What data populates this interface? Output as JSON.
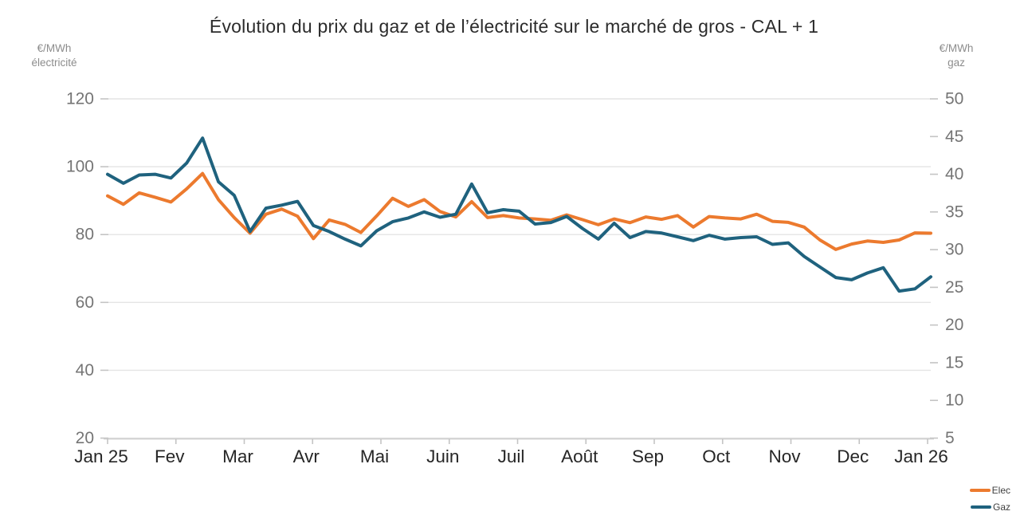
{
  "title": "Évolution du prix du gaz et de l’électricité sur le marché de gros - CAL + 1",
  "left_axis": {
    "unit_line1": "€/MWh",
    "unit_line2": "électricité",
    "ticks": [
      120,
      100,
      80,
      60,
      40,
      20
    ],
    "min": 20,
    "max": 120
  },
  "right_axis": {
    "unit_line1": "€/MWh",
    "unit_line2": "gaz",
    "ticks": [
      50,
      45,
      40,
      35,
      30,
      25,
      20,
      15,
      10,
      5
    ],
    "min": 5,
    "max": 50
  },
  "x_axis": {
    "labels": [
      "Jan 25",
      "Fev",
      "Mar",
      "Avr",
      "Mai",
      "Juin",
      "Juil",
      "Août",
      "Sep",
      "Oct",
      "Nov",
      "Dec",
      "Jan 26"
    ]
  },
  "legend": [
    {
      "label": "Elec",
      "color": "#EC7A2E"
    },
    {
      "label": "Gaz",
      "color": "#1F627E"
    }
  ],
  "colors": {
    "elec": "#EC7A2E",
    "gaz": "#1F627E",
    "gridline": "#e4e4e4",
    "tick": "#c4c4c4",
    "axis_line": "#cdcdcd",
    "y_label": "#757575",
    "x_label": "#262626"
  },
  "chart_data": {
    "type": "line",
    "title": "Évolution du prix du gaz et de l’électricité sur le marché de gros - CAL + 1",
    "x_label_ticks": [
      "Jan 25",
      "Fev",
      "Mar",
      "Avr",
      "Mai",
      "Juin",
      "Juil",
      "Août",
      "Sep",
      "Oct",
      "Nov",
      "Dec",
      "Jan 26"
    ],
    "x_weekly_dates": [
      "2025-01-01",
      "2025-01-08",
      "2025-01-15",
      "2025-01-22",
      "2025-01-29",
      "2025-02-05",
      "2025-02-12",
      "2025-02-19",
      "2025-02-26",
      "2025-03-05",
      "2025-03-12",
      "2025-03-19",
      "2025-03-26",
      "2025-04-02",
      "2025-04-09",
      "2025-04-16",
      "2025-04-23",
      "2025-04-30",
      "2025-05-07",
      "2025-05-14",
      "2025-05-21",
      "2025-05-28",
      "2025-06-04",
      "2025-06-11",
      "2025-06-18",
      "2025-06-25",
      "2025-07-02",
      "2025-07-09",
      "2025-07-16",
      "2025-07-23",
      "2025-07-30",
      "2025-08-06",
      "2025-08-13",
      "2025-08-20",
      "2025-08-27",
      "2025-09-03",
      "2025-09-10",
      "2025-09-17",
      "2025-09-24",
      "2025-10-01",
      "2025-10-08",
      "2025-10-15",
      "2025-10-22",
      "2025-10-29",
      "2025-11-05",
      "2025-11-12",
      "2025-11-19",
      "2025-11-26",
      "2025-12-03",
      "2025-12-10",
      "2025-12-17",
      "2025-12-24",
      "2025-12-31"
    ],
    "series": [
      {
        "name": "Elec",
        "axis": "left",
        "unit": "€/MWh électricité",
        "color": "#EC7A2E",
        "values": [
          91.4,
          88.9,
          92.3,
          91.0,
          89.6,
          93.5,
          98.0,
          90.3,
          85.0,
          80.4,
          86.0,
          87.5,
          85.4,
          78.8,
          84.3,
          83.0,
          80.6,
          85.5,
          90.7,
          88.3,
          90.3,
          86.8,
          85.2,
          89.7,
          85.0,
          85.6,
          84.9,
          84.6,
          84.2,
          85.8,
          84.4,
          82.9,
          84.6,
          83.5,
          85.2,
          84.5,
          85.6,
          82.2,
          85.3,
          84.9,
          84.6,
          86.0,
          83.9,
          83.6,
          82.2,
          78.4,
          75.6,
          77.2,
          78.1,
          77.7,
          78.4,
          80.5,
          80.4
        ]
      },
      {
        "name": "Gaz",
        "axis": "right",
        "unit": "€/MWh gaz",
        "color": "#1F627E",
        "values": [
          40.0,
          38.8,
          39.9,
          40.0,
          39.5,
          41.5,
          44.8,
          39.0,
          37.2,
          32.4,
          35.5,
          35.9,
          36.4,
          33.2,
          32.4,
          31.4,
          30.5,
          32.5,
          33.7,
          34.2,
          35.0,
          34.3,
          34.7,
          38.7,
          34.9,
          35.3,
          35.1,
          33.4,
          33.6,
          34.4,
          32.8,
          31.4,
          33.5,
          31.6,
          32.4,
          32.2,
          31.7,
          31.2,
          31.9,
          31.4,
          31.6,
          31.7,
          30.7,
          30.9,
          29.1,
          27.7,
          26.3,
          26.0,
          26.9,
          27.6,
          24.5,
          24.8,
          26.4
        ]
      }
    ],
    "left_ylim": [
      20,
      120
    ],
    "right_ylim": [
      5,
      50
    ],
    "grid": "horizontal-left-ticks-only",
    "legend_position": "bottom-right"
  }
}
